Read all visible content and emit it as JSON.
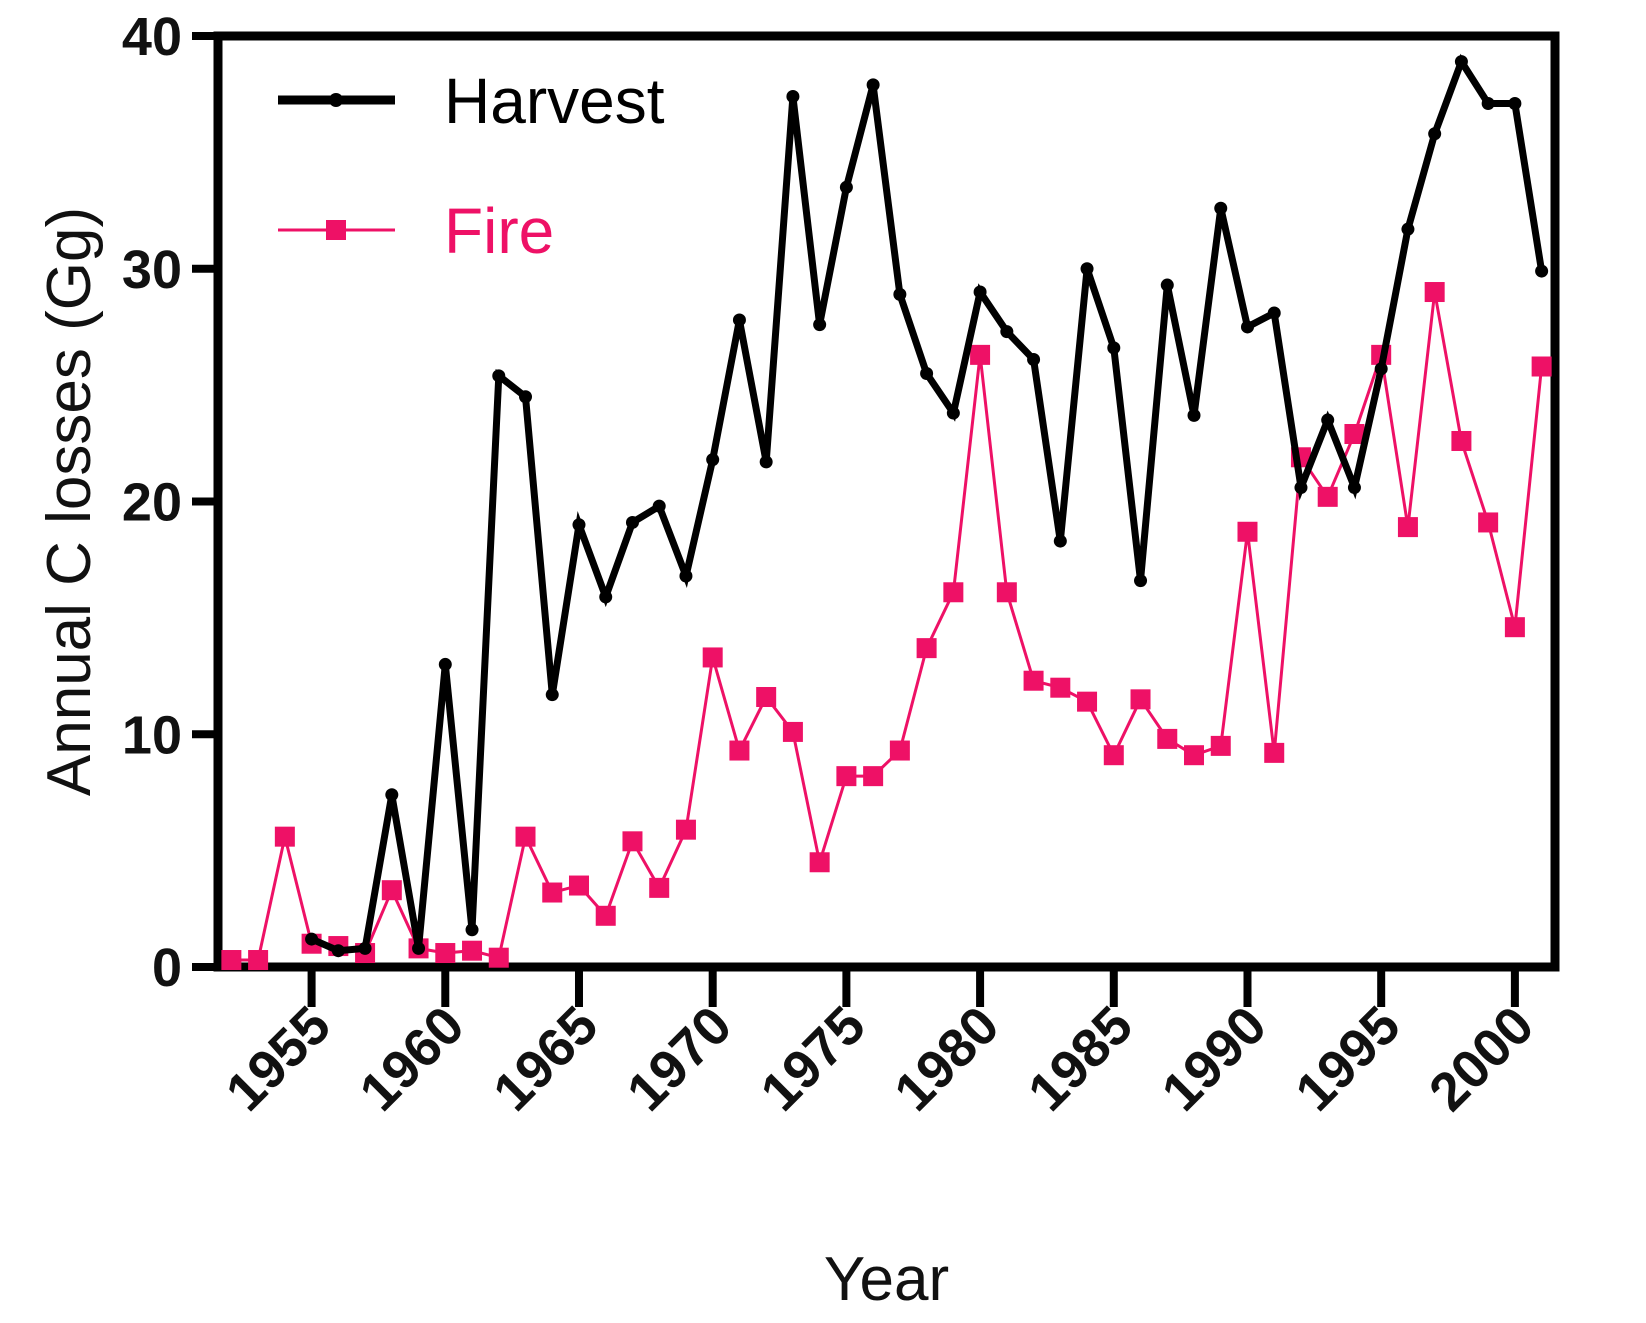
{
  "chart_data": {
    "type": "line",
    "title": "",
    "xlabel": "Year",
    "ylabel": "Annual C losses (Gg)",
    "xlim": [
      1951.5,
      2001.5
    ],
    "ylim": [
      0,
      40
    ],
    "xticks": [
      1955,
      1960,
      1965,
      1970,
      1975,
      1980,
      1985,
      1990,
      1995,
      2000
    ],
    "xtick_labels": [
      "1955",
      "1960",
      "1965",
      "1970",
      "1975",
      "1980",
      "1985",
      "1990",
      "1995",
      "2000"
    ],
    "yticks": [
      0,
      10,
      20,
      30,
      40
    ],
    "ytick_labels": [
      "0",
      "10",
      "20",
      "30",
      "40"
    ],
    "grid": false,
    "legend_position": "top-left",
    "series": [
      {
        "name": "Harvest",
        "color": "#000000",
        "marker": "circle",
        "points": [
          [
            1955,
            1.2
          ],
          [
            1956,
            0.7
          ],
          [
            1957,
            0.8
          ],
          [
            1958,
            7.4
          ],
          [
            1959,
            0.8
          ],
          [
            1960,
            13.0
          ],
          [
            1961,
            1.6
          ],
          [
            1962,
            25.4
          ],
          [
            1963,
            24.5
          ],
          [
            1964,
            11.7
          ],
          [
            1965,
            19.0
          ],
          [
            1966,
            15.9
          ],
          [
            1967,
            19.1
          ],
          [
            1968,
            19.8
          ],
          [
            1969,
            16.8
          ],
          [
            1970,
            21.8
          ],
          [
            1971,
            27.8
          ],
          [
            1972,
            21.7
          ],
          [
            1973,
            37.4
          ],
          [
            1974,
            27.6
          ],
          [
            1975,
            33.5
          ],
          [
            1976,
            37.9
          ],
          [
            1977,
            28.9
          ],
          [
            1978,
            25.5
          ],
          [
            1979,
            23.8
          ],
          [
            1980,
            29.0
          ],
          [
            1981,
            27.3
          ],
          [
            1982,
            26.1
          ],
          [
            1983,
            18.3
          ],
          [
            1984,
            30.0
          ],
          [
            1985,
            26.6
          ],
          [
            1986,
            16.6
          ],
          [
            1987,
            29.3
          ],
          [
            1988,
            23.7
          ],
          [
            1989,
            32.6
          ],
          [
            1990,
            27.5
          ],
          [
            1991,
            28.1
          ],
          [
            1992,
            20.6
          ],
          [
            1993,
            23.5
          ],
          [
            1994,
            20.6
          ],
          [
            1995,
            25.7
          ],
          [
            1996,
            31.7
          ],
          [
            1997,
            35.8
          ],
          [
            1998,
            38.9
          ],
          [
            1999,
            37.1
          ],
          [
            2000,
            37.1
          ],
          [
            2001,
            29.9
          ]
        ]
      },
      {
        "name": "Fire",
        "color": "#ee1166",
        "marker": "square",
        "points": [
          [
            1952,
            0.3
          ],
          [
            1953,
            0.3
          ],
          [
            1954,
            5.6
          ],
          [
            1955,
            1.0
          ],
          [
            1956,
            0.9
          ],
          [
            1957,
            0.6
          ],
          [
            1958,
            3.3
          ],
          [
            1959,
            0.8
          ],
          [
            1960,
            0.6
          ],
          [
            1961,
            0.7
          ],
          [
            1962,
            0.4
          ],
          [
            1963,
            5.6
          ],
          [
            1964,
            3.2
          ],
          [
            1965,
            3.5
          ],
          [
            1966,
            2.2
          ],
          [
            1967,
            5.4
          ],
          [
            1968,
            3.4
          ],
          [
            1969,
            5.9
          ],
          [
            1970,
            13.3
          ],
          [
            1971,
            9.3
          ],
          [
            1972,
            11.6
          ],
          [
            1973,
            10.1
          ],
          [
            1974,
            4.5
          ],
          [
            1975,
            8.2
          ],
          [
            1976,
            8.2
          ],
          [
            1977,
            9.3
          ],
          [
            1978,
            13.7
          ],
          [
            1979,
            16.1
          ],
          [
            1980,
            26.3
          ],
          [
            1981,
            16.1
          ],
          [
            1982,
            12.3
          ],
          [
            1983,
            12.0
          ],
          [
            1984,
            11.4
          ],
          [
            1985,
            9.1
          ],
          [
            1986,
            11.5
          ],
          [
            1987,
            9.8
          ],
          [
            1988,
            9.1
          ],
          [
            1989,
            9.5
          ],
          [
            1990,
            18.7
          ],
          [
            1991,
            9.2
          ],
          [
            1992,
            21.9
          ],
          [
            1993,
            20.2
          ],
          [
            1994,
            22.9
          ],
          [
            1995,
            26.3
          ],
          [
            1996,
            18.9
          ],
          [
            1997,
            29.0
          ],
          [
            1998,
            22.6
          ],
          [
            1999,
            19.1
          ],
          [
            2000,
            14.6
          ],
          [
            2001,
            25.8
          ]
        ]
      }
    ]
  }
}
